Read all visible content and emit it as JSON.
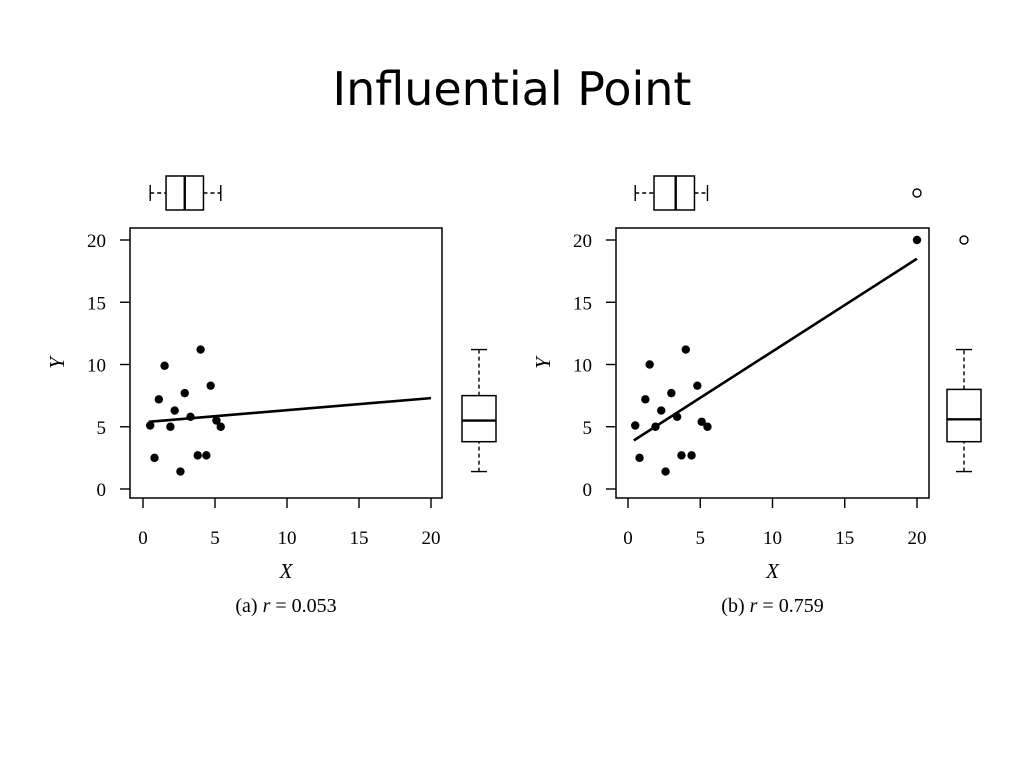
{
  "slide": {
    "title": "Influential Point"
  },
  "chart_data": [
    {
      "type": "scatter",
      "id": "a",
      "caption": {
        "prefix": "(a) ",
        "var": "r",
        "rest": " = 0.053"
      },
      "xlabel": "X",
      "ylabel": "Y",
      "xlim": [
        0,
        20
      ],
      "ylim": [
        0,
        20
      ],
      "xticks": [
        0,
        5,
        10,
        15,
        20
      ],
      "yticks": [
        0,
        5,
        10,
        15,
        20
      ],
      "points": [
        [
          0.5,
          5.1
        ],
        [
          0.8,
          2.5
        ],
        [
          1.1,
          7.2
        ],
        [
          1.5,
          9.9
        ],
        [
          1.9,
          5.0
        ],
        [
          2.2,
          6.3
        ],
        [
          2.6,
          1.4
        ],
        [
          2.9,
          7.7
        ],
        [
          3.3,
          5.8
        ],
        [
          3.8,
          2.7
        ],
        [
          4.0,
          11.2
        ],
        [
          4.4,
          2.7
        ],
        [
          4.7,
          8.3
        ],
        [
          5.1,
          5.5
        ],
        [
          5.4,
          5.0
        ]
      ],
      "fit_line": [
        [
          0.4,
          5.4
        ],
        [
          20,
          7.3
        ]
      ],
      "marginal_x_box": {
        "min": 0.5,
        "q1": 1.6,
        "median": 2.9,
        "q3": 4.2,
        "max": 5.4,
        "outliers": []
      },
      "marginal_y_box": {
        "min": 1.4,
        "q1": 3.8,
        "median": 5.5,
        "q3": 7.5,
        "max": 11.2,
        "outliers": []
      }
    },
    {
      "type": "scatter",
      "id": "b",
      "caption": {
        "prefix": "(b) ",
        "var": "r",
        "rest": " = 0.759"
      },
      "xlabel": "X",
      "ylabel": "Y",
      "xlim": [
        0,
        20
      ],
      "ylim": [
        0,
        20
      ],
      "xticks": [
        0,
        5,
        10,
        15,
        20
      ],
      "yticks": [
        0,
        5,
        10,
        15,
        20
      ],
      "points": [
        [
          0.5,
          5.1
        ],
        [
          0.8,
          2.5
        ],
        [
          1.2,
          7.2
        ],
        [
          1.5,
          10.0
        ],
        [
          1.9,
          5.0
        ],
        [
          2.3,
          6.3
        ],
        [
          2.6,
          1.4
        ],
        [
          3.0,
          7.7
        ],
        [
          3.4,
          5.8
        ],
        [
          3.7,
          2.7
        ],
        [
          4.0,
          11.2
        ],
        [
          4.4,
          2.7
        ],
        [
          4.8,
          8.3
        ],
        [
          5.1,
          5.4
        ],
        [
          5.5,
          5.0
        ],
        [
          20.0,
          20.0
        ]
      ],
      "fit_line": [
        [
          0.4,
          3.9
        ],
        [
          20,
          18.5
        ]
      ],
      "marginal_x_box": {
        "min": 0.5,
        "q1": 1.8,
        "median": 3.3,
        "q3": 4.6,
        "max": 5.5,
        "outliers": [
          20.0
        ]
      },
      "marginal_y_box": {
        "min": 1.4,
        "q1": 3.8,
        "median": 5.6,
        "q3": 8.0,
        "max": 11.2,
        "outliers": [
          20.0
        ]
      }
    }
  ]
}
